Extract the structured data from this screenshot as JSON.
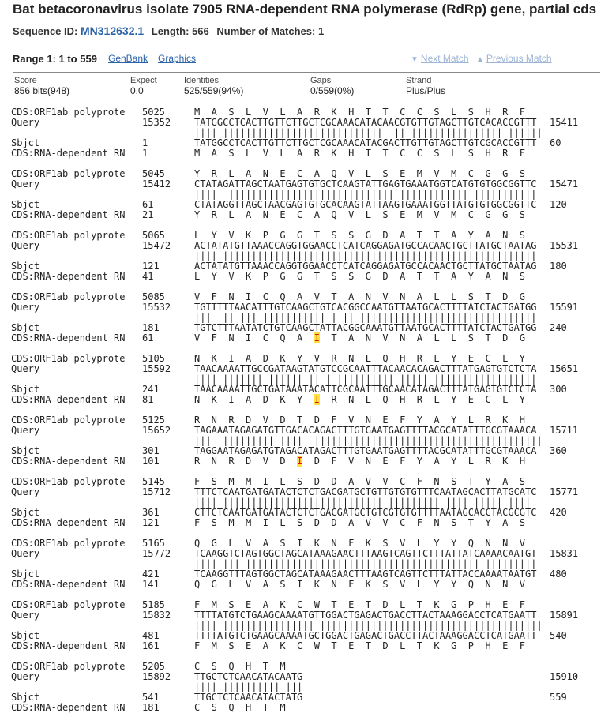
{
  "header": {
    "title": "Bat betacoronavirus isolate 7905 RNA-dependent RNA polymerase (RdRp) gene, partial cds",
    "seq_id_label": "Sequence ID:",
    "seq_id": "MN312632.1",
    "length_label": "Length:",
    "length": "566",
    "matches_label": "Number of Matches:",
    "matches": "1"
  },
  "range": {
    "label": "Range 1: 1 to 559",
    "genbank": "GenBank",
    "graphics": "Graphics",
    "next_match": "Next Match",
    "prev_match": "Previous Match"
  },
  "stats": [
    {
      "label": "Score",
      "value": "856 bits(948)"
    },
    {
      "label": "Expect",
      "value": "0.0"
    },
    {
      "label": "Identities",
      "value": "525/559(94%)"
    },
    {
      "label": "Gaps",
      "value": "0/559(0%)"
    },
    {
      "label": "Strand",
      "value": "Plus/Plus"
    }
  ],
  "alignment": {
    "labels": {
      "cds_top": "CDS:ORF1ab polyprote",
      "query": "Query",
      "sbjct": "Sbjct",
      "cds_bottom": "CDS:RNA-dependent RN"
    },
    "blocks": [
      {
        "cds_top_start": "5025",
        "top_aa": "M  A  S  L  V  L  A  R  K  H  T  T  C  C  S  L  S  H  R  F",
        "q_start": "15352",
        "q_seq": "TATGGCCTCACTTGTTCTTGCTCGCAAACATACAACGTGTTGTAGCTTGTCACACCGTTT",
        "q_end": "15411",
        "match": "|||||||||||||||||||||||||||||||||  || |||||||||||||||| ||||||",
        "s_start": "1",
        "s_seq": "TATGGCCTCACTTGTTCTTGCTCGCAAACATACGACTTGTTGTAGCTTGTCGCACCGTTT",
        "s_end": "60",
        "cds_bot_start": "1",
        "bot_aa": "M  A  S  L  V  L  A  R  K  H  T  T  C  C  S  L  S  H  R  F"
      },
      {
        "cds_top_start": "5045",
        "top_aa": "Y  R  L  A  N  E  C  A  Q  V  L  S  E  M  V  M  C  G  G  S",
        "q_start": "15412",
        "q_seq": "CTATAGATTAGCTAATGAGTGTGCTCAAGTATTGAGTGAAATGGTCATGTGTGGCGGTTC",
        "q_end": "15471",
        "match": "||||| ||||||||||||||||||||||||||||| |||||||||||| |||||||||||",
        "s_start": "61",
        "s_seq": "CTATAGGTTAGCTAACGAGTGTGCACAAGTATTAAGTGAAATGGTTATGTGTGGCGGTTC",
        "s_end": "120",
        "cds_bot_start": "21",
        "bot_aa": "Y  R  L  A  N  E  C  A  Q  V  L  S  E  M  V  M  C  G  G  S"
      },
      {
        "cds_top_start": "5065",
        "top_aa": "L  Y  V  K  P  G  G  T  S  S  G  D  A  T  T  A  Y  A  N  S",
        "q_start": "15472",
        "q_seq": "ACTATATGTTAAACCAGGTGGAACCTCATCAGGAGATGCCACAACTGCTTATGCTAATAG",
        "q_end": "15531",
        "match": "||||||||||||||||||||||||||||||||||||||||||||||||||||||||||||",
        "s_start": "121",
        "s_seq": "ACTATATGTTAAACCAGGTGGAACCTCATCAGGAGATGCCACAACTGCTTATGCTAATAG",
        "s_end": "180",
        "cds_bot_start": "41",
        "bot_aa": "L  Y  V  K  P  G  G  T  S  S  G  D  A  T  T  A  Y  A  N  S"
      },
      {
        "cds_top_start": "5085",
        "top_aa": "V  F  N  I  C  Q  A  V  T  A  N  V  N  A  L  L  S  T  D  G",
        "q_start": "15532",
        "q_seq": "TGTTTTTAACATTTGTCAAGCTGTCACGGCCAATGTTAATGCACTTTTATCTACTGATGG",
        "q_end": "15591",
        "match": "||| ||| ||| ||||||||||| | || |||||||||||||||||||||||||||||||",
        "s_start": "181",
        "s_seq": "TGTCTTTAATATCTGTCAAGCTATTACGGCAAATGTTAATGCACTTTTATCTACTGATGG",
        "s_end": "240",
        "cds_bot_start": "61",
        "bot_aa": "V  F  N  I  C  Q  A  I  T  A  N  V  N  A  L  L  S  T  D  G",
        "hl_idx": 21
      },
      {
        "cds_top_start": "5105",
        "top_aa": "N  K  I  A  D  K  Y  V  R  N  L  Q  H  R  L  Y  E  C  L  Y",
        "q_start": "15592",
        "q_seq": "TAACAAAATTGCCGATAAGTATGTCCGCAATTTACAACACAGACTTTATGAGTGTCTCTA",
        "q_end": "15651",
        "match": "|||||||||||| |||||| || | |||||||||| ||||| ||||||||||||||||||",
        "s_start": "241",
        "s_seq": "TAACAAAATTGCTGATAAATACATTCGCAATTTGCAACATAGACTTTATGAGTGTCTCTA",
        "s_end": "300",
        "cds_bot_start": "81",
        "bot_aa": "N  K  I  A  D  K  Y  I  R  N  L  Q  H  R  L  Y  E  C  L  Y",
        "hl_idx": 21
      },
      {
        "cds_top_start": "5125",
        "top_aa": "R  N  R  D  V  D  T  D  F  V  N  E  F  Y  A  Y  L  R  K  H",
        "q_start": "15652",
        "q_seq": "TAGAAATAGAGATGTTGACACAGACTTTGTGAATGAGTTTTACGCATATTTGCGTAAACA",
        "q_end": "15711",
        "match": "||| |||||||||| ||||  ||||||||||||||||||||||||||||||||||||||||",
        "s_start": "301",
        "s_seq": "TAGGAATAGAGATGTAGACATAGACTTTGTGAATGAGTTTTACGCATATTTGCGTAAACA",
        "s_end": "360",
        "cds_bot_start": "101",
        "bot_aa": "R  N  R  D  V  D  I  D  F  V  N  E  F  Y  A  Y  L  R  K  H",
        "hl_idx": 18
      },
      {
        "cds_top_start": "5145",
        "top_aa": "F  S  M  M  I  L  S  D  D  A  V  V  C  F  N  S  T  Y  A  S",
        "q_start": "15712",
        "q_seq": "TTTCTCAATGATGATACTCTCTGACGATGCTGTTGTGTGTTTCAATAGCACTTATGCATC",
        "q_end": "15771",
        "match": "||||||||||||||||||||||||||||||||| ||||||||| |||| ||||| ||||  ",
        "s_start": "361",
        "s_seq": "CTTCTCAATGATGATACTCTCTGACGATGCTGTCGTGTGTTTTAATAGCACCTACGCGTC",
        "s_end": "420",
        "cds_bot_start": "121",
        "bot_aa": "F  S  M  M  I  L  S  D  D  A  V  V  C  F  N  S  T  Y  A  S"
      },
      {
        "cds_top_start": "5165",
        "top_aa": "Q  G  L  V  A  S  I  K  N  F  K  S  V  L  Y  Y  Q  N  N  V",
        "q_start": "15772",
        "q_seq": "TCAAGGTCTAGTGGCTAGCATAAAGAACTTTAAGTCAGTTCTTTATTATCAAAACAATGT",
        "q_end": "15831",
        "match": "|||||||| ||||||||||||||||||||||||||||||||||||||||| |||||||||",
        "s_start": "421",
        "s_seq": "TCAAGGTTTAGTGGCTAGCATAAAGAACTTTAAGTCAGTTCTTTATTACCAAAATAATGT",
        "s_end": "480",
        "cds_bot_start": "141",
        "bot_aa": "Q  G  L  V  A  S  I  K  N  F  K  S  V  L  Y  Y  Q  N  N  V"
      },
      {
        "cds_top_start": "5185",
        "top_aa": "F  M  S  E  A  K  C  W  T  E  T  D  L  T  K  G  P  H  E  F",
        "q_start": "15832",
        "q_seq": "TTTTATGTCTGAAGCAAAATGTTGGACTGAGACTGACCTTACTAAAGGACCTCATGAATT",
        "q_end": "15891",
        "match": "||||||||||||||||||||| |||||||||||||||||||||||||||||||||||||||",
        "s_start": "481",
        "s_seq": "TTTTATGTCTGAAGCAAAATGCTGGACTGAGACTGACCTTACTAAAGGACCTCATGAATT",
        "s_end": "540",
        "cds_bot_start": "161",
        "bot_aa": "F  M  S  E  A  K  C  W  T  E  T  D  L  T  K  G  P  H  E  F"
      },
      {
        "cds_top_start": "5205",
        "top_aa": "C  S  Q  H  T  M",
        "q_start": "15892",
        "q_seq": "TTGCTCTCAACATACAATG",
        "q_end": "15910",
        "match": "||||||||||||||| |||",
        "s_start": "541",
        "s_seq": "TTGCTCTCAACATACTATG",
        "s_end": "559",
        "cds_bot_start": "181",
        "bot_aa": "C  S  Q  H  T  M"
      }
    ]
  },
  "colors": {
    "link": "#2b63a8",
    "highlight": "#ffe23d",
    "highlight_text": "#dd1111",
    "disabled_link": "#9db5d6"
  }
}
